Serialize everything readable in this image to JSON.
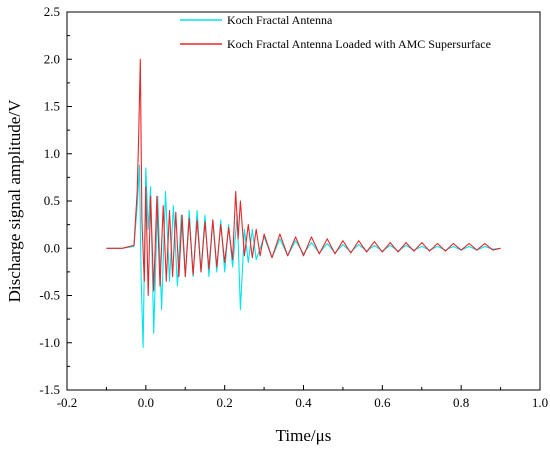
{
  "chart_data": {
    "type": "line",
    "title": "",
    "xlabel": "Time/μs",
    "ylabel": "Discharge signal amplitude/V",
    "xlim": [
      -0.2,
      1.0
    ],
    "ylim": [
      -1.5,
      2.5
    ],
    "xticks": [
      "-0.2",
      "0.0",
      "0.2",
      "0.4",
      "0.6",
      "0.8",
      "1.0"
    ],
    "yticks": [
      "2.5",
      "2.0",
      "1.5",
      "1.0",
      "0.5",
      "0.0",
      "-0.5",
      "-1.0",
      "-1.5"
    ],
    "grid": false,
    "legend_position": "top-right",
    "series": [
      {
        "name": "Koch Fractal Antenna",
        "color": "#00e5ee",
        "x": [
          -0.1,
          -0.06,
          -0.03,
          -0.022,
          -0.016,
          -0.012,
          -0.007,
          0.0,
          0.006,
          0.012,
          0.02,
          0.03,
          0.04,
          0.05,
          0.06,
          0.07,
          0.08,
          0.09,
          0.1,
          0.11,
          0.12,
          0.13,
          0.14,
          0.15,
          0.16,
          0.17,
          0.18,
          0.19,
          0.2,
          0.21,
          0.22,
          0.232,
          0.24,
          0.25,
          0.26,
          0.27,
          0.28,
          0.3,
          0.32,
          0.34,
          0.36,
          0.38,
          0.4,
          0.42,
          0.44,
          0.46,
          0.48,
          0.5,
          0.52,
          0.54,
          0.56,
          0.58,
          0.6,
          0.62,
          0.64,
          0.66,
          0.68,
          0.7,
          0.72,
          0.74,
          0.76,
          0.78,
          0.8,
          0.82,
          0.84,
          0.86,
          0.88,
          0.9
        ],
        "y": [
          0.0,
          0.0,
          0.02,
          0.45,
          0.88,
          -0.3,
          -1.05,
          0.85,
          0.2,
          0.65,
          -0.9,
          0.55,
          -0.65,
          0.6,
          -0.35,
          0.45,
          -0.4,
          0.35,
          -0.3,
          0.4,
          -0.3,
          0.4,
          -0.25,
          0.35,
          -0.3,
          0.3,
          -0.25,
          0.3,
          -0.25,
          0.25,
          -0.2,
          0.35,
          -0.65,
          0.2,
          -0.15,
          0.2,
          -0.12,
          0.12,
          -0.1,
          0.1,
          -0.08,
          0.08,
          -0.06,
          0.06,
          -0.05,
          0.05,
          -0.05,
          0.04,
          -0.04,
          0.04,
          -0.03,
          0.03,
          -0.03,
          0.03,
          -0.03,
          0.03,
          -0.02,
          0.02,
          -0.02,
          0.02,
          -0.02,
          0.02,
          -0.02,
          0.02,
          -0.02,
          0.02,
          -0.01,
          0.0
        ]
      },
      {
        "name": "Koch Fractal Antenna Loaded with AMC Supersurface",
        "color": "#e8272a",
        "x": [
          -0.1,
          -0.06,
          -0.03,
          -0.022,
          -0.018,
          -0.014,
          -0.01,
          -0.004,
          0.0,
          0.006,
          0.012,
          0.02,
          0.028,
          0.036,
          0.044,
          0.052,
          0.06,
          0.068,
          0.076,
          0.084,
          0.092,
          0.1,
          0.11,
          0.12,
          0.13,
          0.14,
          0.15,
          0.16,
          0.17,
          0.18,
          0.19,
          0.2,
          0.21,
          0.22,
          0.228,
          0.234,
          0.24,
          0.25,
          0.26,
          0.27,
          0.28,
          0.29,
          0.3,
          0.32,
          0.34,
          0.36,
          0.38,
          0.4,
          0.42,
          0.44,
          0.46,
          0.48,
          0.5,
          0.52,
          0.54,
          0.56,
          0.58,
          0.6,
          0.62,
          0.64,
          0.66,
          0.68,
          0.7,
          0.72,
          0.74,
          0.76,
          0.78,
          0.8,
          0.82,
          0.84,
          0.86,
          0.88,
          0.9
        ],
        "y": [
          0.0,
          0.0,
          0.03,
          0.6,
          1.2,
          2.0,
          0.3,
          -0.35,
          0.65,
          -0.5,
          0.55,
          -0.45,
          0.55,
          -0.4,
          0.45,
          -0.35,
          0.4,
          -0.3,
          0.38,
          -0.3,
          0.35,
          -0.3,
          0.32,
          -0.28,
          0.3,
          -0.25,
          0.28,
          -0.22,
          0.3,
          -0.2,
          0.25,
          -0.15,
          0.22,
          -0.12,
          0.6,
          0.1,
          0.5,
          -0.08,
          0.25,
          -0.1,
          0.2,
          -0.08,
          0.15,
          -0.1,
          0.15,
          -0.08,
          0.12,
          -0.08,
          0.12,
          -0.06,
          0.1,
          -0.06,
          0.08,
          -0.05,
          0.08,
          -0.04,
          0.07,
          -0.04,
          0.06,
          -0.04,
          0.06,
          -0.03,
          0.06,
          -0.03,
          0.05,
          -0.03,
          0.05,
          -0.02,
          0.05,
          -0.02,
          0.05,
          -0.02,
          0.0
        ]
      }
    ]
  }
}
